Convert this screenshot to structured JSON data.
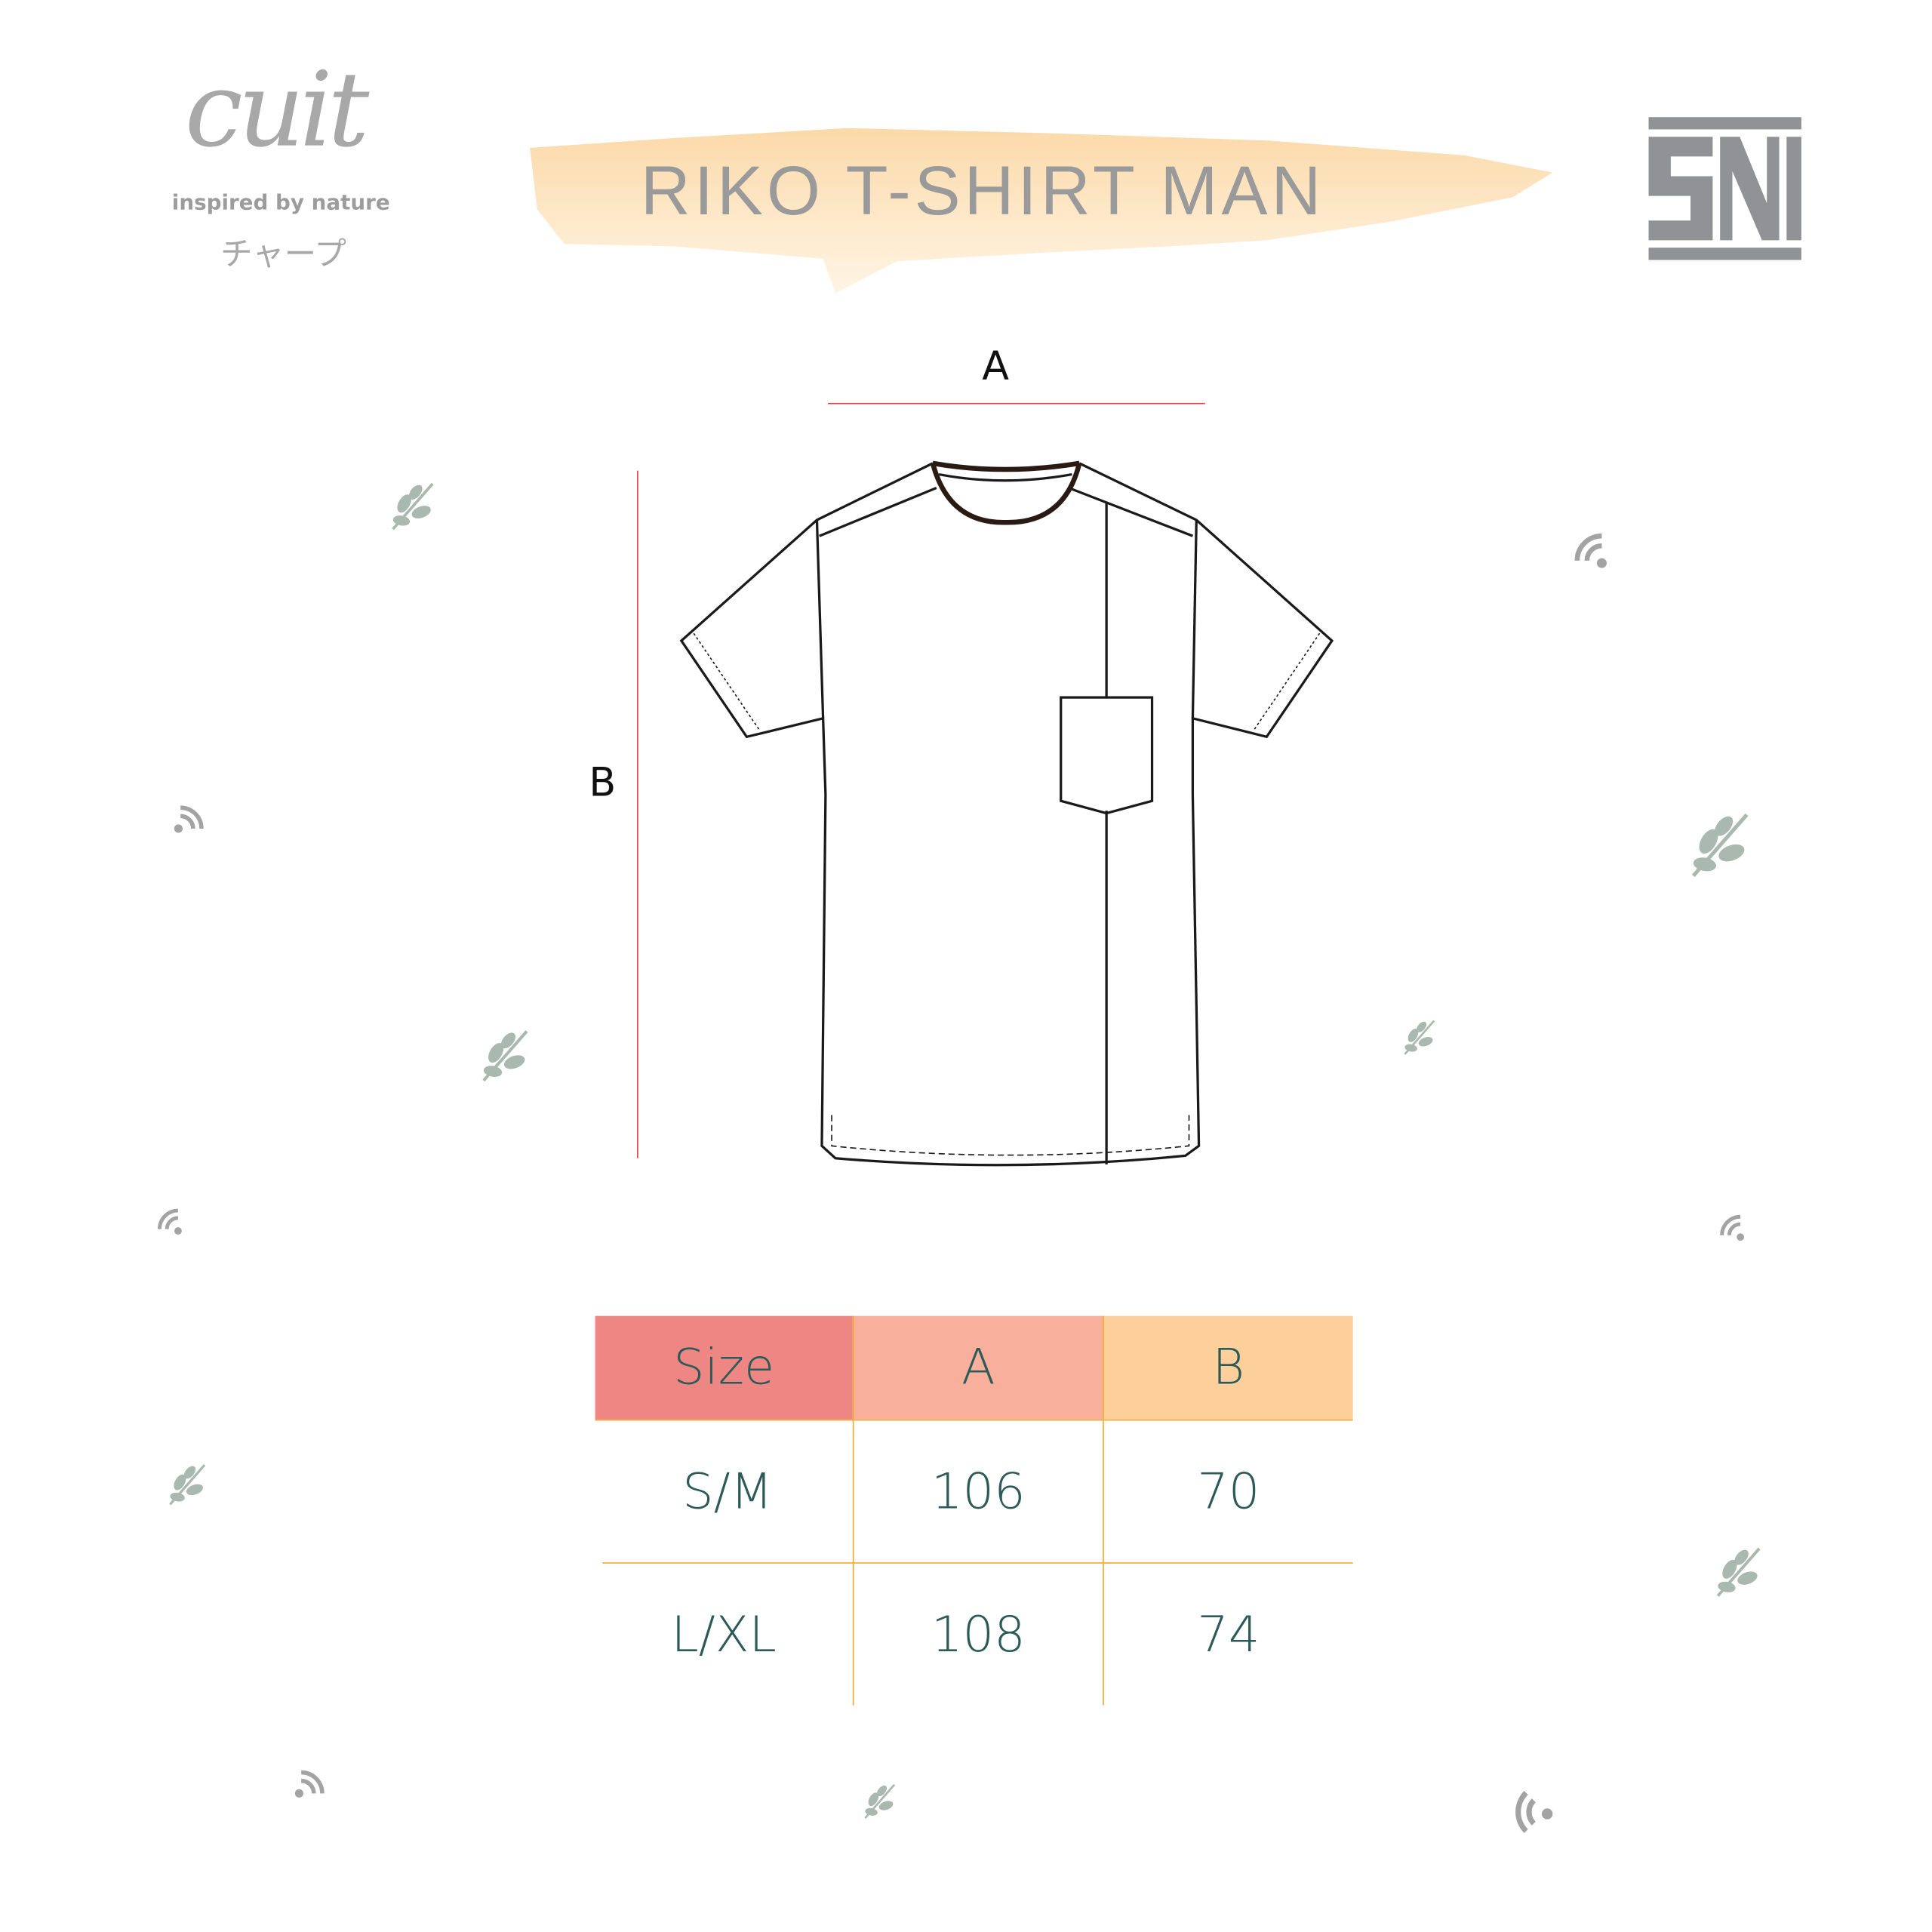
{
  "brand": {
    "logo_text": "cuit",
    "tagline": "inspired by nature",
    "japanese": "チャープ"
  },
  "title": "RIKO T-SHIRT MAN",
  "certification_logo": "SNI",
  "diagram": {
    "label_a": "A",
    "label_b": "B"
  },
  "size_table": {
    "headers": [
      "Size",
      "A",
      "B"
    ],
    "header_colors": [
      "#ee8784",
      "#f8b09c",
      "#fdcf9b"
    ],
    "rows": [
      [
        "S/M",
        "106",
        "70"
      ],
      [
        "L/XL",
        "108",
        "74"
      ]
    ]
  },
  "colors": {
    "text": "#2c5a58",
    "grid": "#f0a72e",
    "dimension_line": "#e8413e",
    "leaf": "#a9b9af",
    "wifi": "#a3a3a3"
  },
  "decorations": [
    "leaf-icon",
    "wifi-icon"
  ]
}
